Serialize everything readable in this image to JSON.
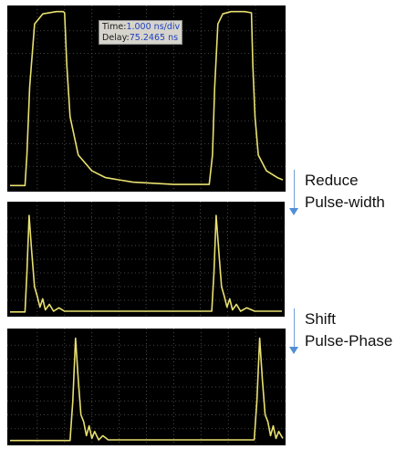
{
  "readout": {
    "time_label": "Time:",
    "time_value": "1.000 ns/div",
    "delay_label": "Delay:",
    "delay_value": "75.2465 ns"
  },
  "annotations": [
    {
      "line1": "Reduce",
      "line2": "Pulse-width",
      "arrow_color": "#4f8fd6"
    },
    {
      "line1": "Shift",
      "line2": "Pulse-Phase",
      "arrow_color": "#4f8fd6"
    }
  ],
  "chart_data": [
    {
      "type": "line",
      "xlim": [
        0,
        10
      ],
      "ylim": [
        0,
        8
      ],
      "grid": true,
      "trace_color": "#e8e070",
      "grid_color": "#5a5a5a",
      "series": [
        {
          "x": [
            0,
            0.55,
            0.62,
            0.72,
            0.9,
            1.2,
            1.7,
            1.95,
            2.0,
            2.08,
            2.2,
            2.5,
            3.0,
            3.5,
            4.5,
            6.0,
            7.3,
            7.42,
            7.5,
            7.62,
            7.8,
            8.1,
            8.6,
            8.85,
            8.9,
            8.98,
            9.1,
            9.4,
            9.8,
            10
          ],
          "y": [
            0.15,
            0.15,
            1.5,
            4.5,
            7.3,
            7.75,
            7.85,
            7.85,
            7.8,
            5.5,
            3.2,
            1.5,
            0.8,
            0.5,
            0.3,
            0.2,
            0.2,
            1.5,
            4.5,
            7.3,
            7.75,
            7.85,
            7.85,
            7.8,
            5.5,
            3.2,
            1.5,
            0.8,
            0.5,
            0.4
          ]
        }
      ]
    },
    {
      "type": "line",
      "xlim": [
        0,
        10
      ],
      "ylim": [
        0,
        8
      ],
      "grid": true,
      "trace_color": "#e8e070",
      "grid_color": "#5a5a5a",
      "series": [
        {
          "x": [
            0,
            0.55,
            0.62,
            0.7,
            0.8,
            0.9,
            1.0,
            1.1,
            1.2,
            1.3,
            1.45,
            1.6,
            1.8,
            2.0,
            3.0,
            4.0,
            5.0,
            6.0,
            7.0,
            7.42,
            7.5,
            7.58,
            7.68,
            7.78,
            7.88,
            7.98,
            8.08,
            8.18,
            8.33,
            8.48,
            8.7,
            9.0,
            10
          ],
          "y": [
            0.15,
            0.15,
            3.0,
            7.2,
            4.5,
            2.0,
            1.3,
            0.5,
            1.1,
            0.3,
            0.7,
            0.2,
            0.45,
            0.2,
            0.2,
            0.2,
            0.2,
            0.2,
            0.2,
            0.2,
            3.0,
            7.2,
            4.5,
            2.0,
            1.3,
            0.5,
            1.1,
            0.3,
            0.7,
            0.2,
            0.45,
            0.2,
            0.2
          ]
        }
      ]
    },
    {
      "type": "line",
      "xlim": [
        0,
        10
      ],
      "ylim": [
        0,
        8
      ],
      "grid": true,
      "trace_color": "#e8e070",
      "grid_color": "#5a5a5a",
      "series": [
        {
          "x": [
            0,
            2.2,
            2.3,
            2.4,
            2.5,
            2.6,
            2.7,
            2.8,
            2.9,
            3.0,
            3.1,
            3.25,
            3.4,
            3.6,
            3.8,
            4.5,
            5.5,
            6.5,
            7.5,
            8.5,
            8.95,
            9.05,
            9.15,
            9.25,
            9.35,
            9.45,
            9.55,
            9.65,
            9.75,
            9.85,
            10
          ],
          "y": [
            0.15,
            0.15,
            3.0,
            7.5,
            4.5,
            2.0,
            1.5,
            0.5,
            1.2,
            0.3,
            0.8,
            0.2,
            0.5,
            0.2,
            0.2,
            0.2,
            0.2,
            0.2,
            0.2,
            0.2,
            0.2,
            3.0,
            7.5,
            4.5,
            2.0,
            1.5,
            0.5,
            1.2,
            0.3,
            0.8,
            0.3
          ]
        }
      ]
    }
  ]
}
